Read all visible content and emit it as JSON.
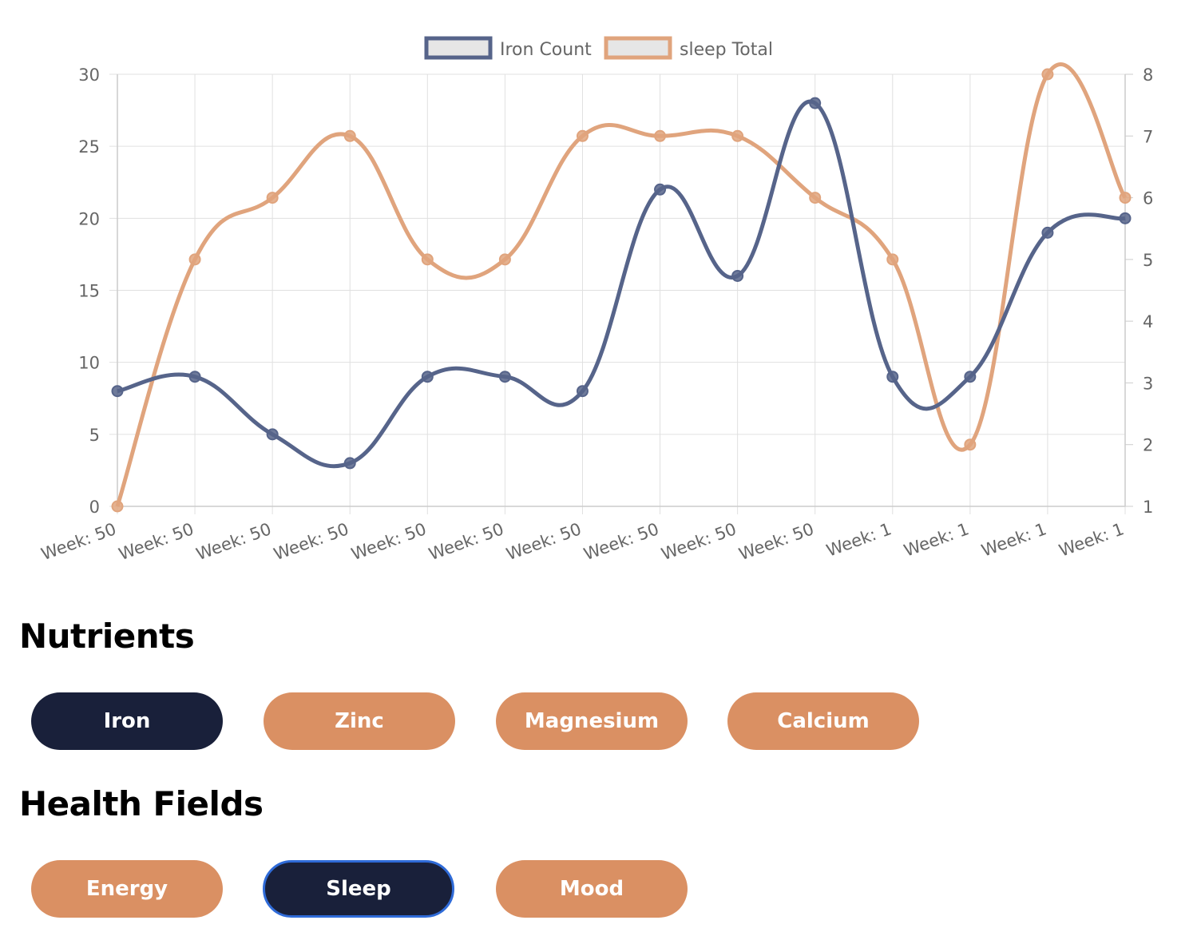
{
  "chart_data": {
    "type": "line",
    "categories": [
      "Week: 50",
      "Week: 50",
      "Week: 50",
      "Week: 50",
      "Week: 50",
      "Week: 50",
      "Week: 50",
      "Week: 50",
      "Week: 50",
      "Week: 50",
      "Week: 1",
      "Week: 1",
      "Week: 1",
      "Week: 1"
    ],
    "series": [
      {
        "name": "Iron Count",
        "axis": "left",
        "color": "#56648a",
        "values": [
          8,
          9,
          5,
          3,
          9,
          9,
          8,
          22,
          16,
          28,
          9,
          9,
          19,
          20
        ]
      },
      {
        "name": "sleep Total",
        "axis": "right",
        "color": "#e0a47d",
        "values": [
          1,
          5,
          6,
          7,
          5,
          5,
          7,
          7,
          7,
          6,
          5,
          2,
          8,
          6
        ]
      }
    ],
    "y_left": {
      "min": 0,
      "max": 30,
      "ticks": [
        "0",
        "5",
        "10",
        "15",
        "20",
        "25",
        "30"
      ]
    },
    "y_right": {
      "min": 1,
      "max": 8,
      "ticks": [
        "1",
        "2",
        "3",
        "4",
        "5",
        "6",
        "7",
        "8"
      ]
    },
    "grid": true,
    "legend": "top-center",
    "title": "",
    "xlabel": "",
    "ylabel": ""
  },
  "nutrients": {
    "title": "Nutrients",
    "buttons": [
      {
        "label": "Iron",
        "active": true
      },
      {
        "label": "Zinc",
        "active": false
      },
      {
        "label": "Magnesium",
        "active": false
      },
      {
        "label": "Calcium",
        "active": false
      }
    ]
  },
  "health_fields": {
    "title": "Health Fields",
    "buttons": [
      {
        "label": "Energy",
        "active": false
      },
      {
        "label": "Sleep",
        "active": true
      },
      {
        "label": "Mood",
        "active": false
      }
    ]
  },
  "colors": {
    "active": "#19203a",
    "inactive": "#da9063",
    "focus_ring": "#2f6bd8",
    "grid": "#e0e0e0",
    "axis_text": "#666666"
  }
}
